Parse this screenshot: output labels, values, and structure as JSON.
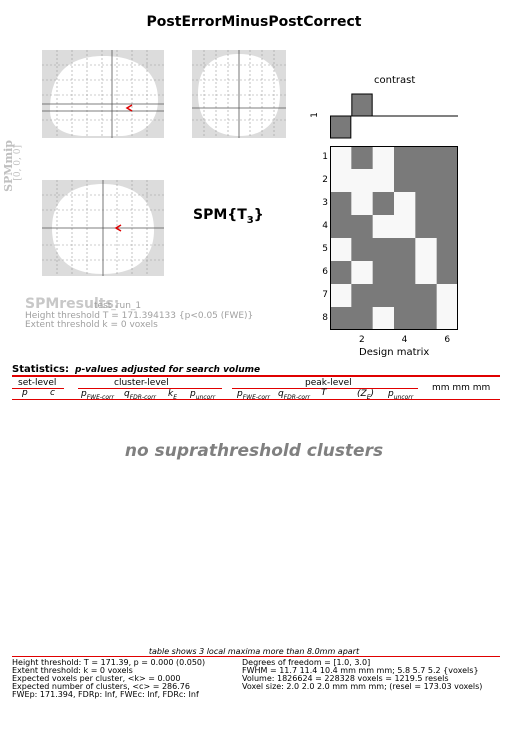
{
  "title": "PostErrorMinusPostCorrect",
  "mip": {
    "label": "SPMmip",
    "coord": "[0, 0, 0]"
  },
  "spm_stat": {
    "prefix": "SPM{T",
    "sub": "3",
    "suffix": "}"
  },
  "design": {
    "contrast_label": "contrast",
    "contrast_axis": "1",
    "contrast_values": [
      -1,
      1,
      0,
      0,
      0,
      0
    ],
    "xlabel": "Design matrix",
    "row_labels": [
      "1",
      "2",
      "3",
      "4",
      "5",
      "6",
      "7",
      "8"
    ],
    "col_labels": [
      "2",
      "4",
      "6"
    ],
    "matrix": [
      [
        1,
        0,
        1,
        0,
        0,
        0
      ],
      [
        1,
        1,
        1,
        0,
        0,
        0
      ],
      [
        0,
        1,
        0,
        1,
        0,
        0
      ],
      [
        0,
        0,
        1,
        1,
        0,
        0
      ],
      [
        1,
        0,
        0,
        0,
        1,
        0
      ],
      [
        0,
        1,
        0,
        0,
        1,
        0
      ],
      [
        1,
        0,
        0,
        0,
        0,
        1
      ],
      [
        0,
        0,
        1,
        0,
        0,
        1
      ]
    ],
    "colors": {
      "white": "#f8f8f8",
      "gray": "#7a7a7a"
    }
  },
  "results": {
    "title": "SPMresults:",
    "name": "test_run_1",
    "height": "Height threshold T = 171.394133  {p<0.05 (FWE)}",
    "extent": "Extent threshold k = 0 voxels"
  },
  "stats": {
    "label": "Statistics:",
    "sub": "p-values adjusted for search volume",
    "set_level": "set-level",
    "cluster_level": "cluster-level",
    "peak_level": "peak-level",
    "mm": "mm mm mm",
    "col_p": "p",
    "col_c": "c",
    "col_pfwe": "p",
    "sub_fwe": "FWE-corr",
    "col_qfdr": "q",
    "sub_fdr": "FDR-corr",
    "col_ke": "k",
    "sub_e": "E",
    "col_punc": "p",
    "sub_unc": "uncorr",
    "col_t": "T",
    "col_z": "(Z",
    "sub_z": "E",
    "col_z_close": ")"
  },
  "no_clusters": "no suprathreshold clusters",
  "footer": {
    "note": "table shows 3 local maxima more than 8.0mm apart",
    "left": [
      "Height threshold: T = 171.39, p = 0.000 (0.050)",
      "Extent threshold: k = 0 voxels",
      "Expected voxels per cluster, <k> = 0.000",
      "Expected number of clusters, <c> = 286.76",
      "FWEp: 171.394, FDRp: Inf, FWEc: Inf, FDRc: Inf"
    ],
    "right": [
      "Degrees of freedom = [1.0, 3.0]",
      "FWHM = 11.7 11.4 10.4 mm mm mm; 5.8 5.7 5.2 {voxels}",
      "Volume: 1826624 = 228328 voxels = 1219.5 resels",
      "Voxel size: 2.0 2.0 2.0 mm mm mm; (resel = 173.03 voxels)"
    ]
  },
  "accent": "#e00000"
}
